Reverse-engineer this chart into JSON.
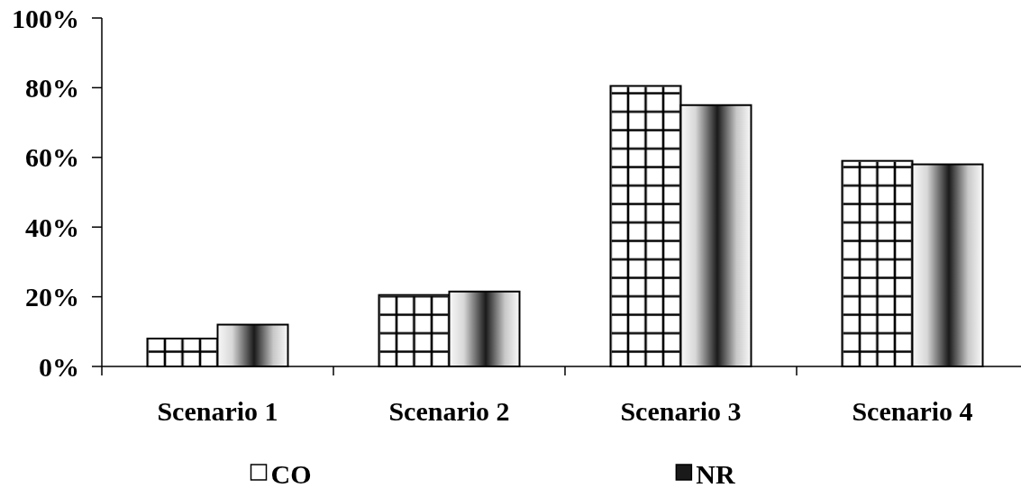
{
  "chart_data": {
    "type": "bar",
    "categories": [
      "Scenario 1",
      "Scenario 2",
      "Scenario 3",
      "Scenario 4"
    ],
    "series": [
      {
        "name": "CO",
        "color": "#ffffff",
        "values": [
          8,
          20.5,
          80.5,
          59
        ]
      },
      {
        "name": "NR",
        "color": "#1a1a1a",
        "values": [
          12,
          21.5,
          75,
          58
        ]
      }
    ],
    "ylim": [
      0,
      100
    ],
    "yticks": [
      {
        "value": 0,
        "label": "0%"
      },
      {
        "value": 20,
        "label": "20%"
      },
      {
        "value": 40,
        "label": "40%"
      },
      {
        "value": 60,
        "label": "60%"
      },
      {
        "value": 80,
        "label": "80%"
      },
      {
        "value": 100,
        "label": "100%"
      }
    ],
    "legend": "bottom"
  }
}
